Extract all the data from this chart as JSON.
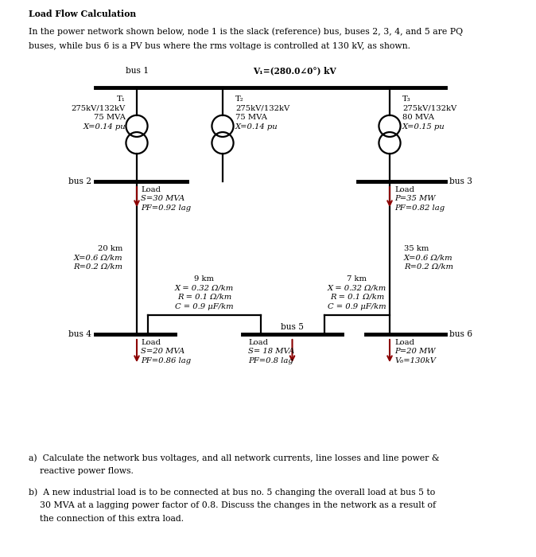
{
  "title": "Load Flow Calculation",
  "intro_line1": "In the power network shown below, node 1 is the slack (reference) bus, buses 2, 3, 4, and 5 are PQ",
  "intro_line2": "buses, while bus 6 is a PV bus where the rms voltage is controlled at 130 kV, as shown.",
  "bus1_label": "bus 1",
  "bus2_label": "bus 2",
  "bus3_label": "bus 3",
  "bus4_label": "bus 4",
  "bus5_label": "bus 5",
  "bus6_label": "bus 6",
  "v1_label": "V₁=(280.0∠0°) kV",
  "T1_line0": "T₁",
  "T1_line1": "275kV/132kV",
  "T1_line2": "75 MVA",
  "T1_line3": "X=0.14 pu",
  "T2_line0": "T₂",
  "T2_line1": "275kV/132kV",
  "T2_line2": "75 MVA",
  "T2_line3": "X=0.14 pu",
  "T3_line0": "T₃",
  "T3_line1": "275kV/132kV",
  "T3_line2": "80 MVA",
  "T3_line3": "X=0.15 pu",
  "load2_line0": "Load",
  "load2_line1": "S=30 MVA",
  "load2_line2": "PF=0.92 lag",
  "load3_line0": "Load",
  "load3_line1": "P=35 MW",
  "load3_line2": "PF=0.82 lag",
  "line24_line0": "20 km",
  "line24_line1": "X=0.6 Ω/km",
  "line24_line2": "R=0.2 Ω/km",
  "line36_line0": "35 km",
  "line36_line1": "X=0.6 Ω/km",
  "line36_line2": "R=0.2 Ω/km",
  "line45a_line0": "9 km",
  "line45a_line1": "X = 0.32 Ω/km",
  "line45a_line2": "R = 0.1 Ω/km",
  "line45a_line3": "C = 0.9 μF/km",
  "line56_line0": "7 km",
  "line56_line1": "X = 0.32 Ω/km",
  "line56_line2": "R = 0.1 Ω/km",
  "line56_line3": "C = 0.9 μF/km",
  "load4_line0": "Load",
  "load4_line1": "S=20 MVA",
  "load4_line2": "PF=0.86 lag",
  "load5_line0": "Load",
  "load5_line1": "S= 18 MVA",
  "load5_line2": "PF=0.8 lag",
  "load6_line0": "Load",
  "load6_line1": "P=20 MW",
  "load6_line2": "V₆=130kV",
  "qa1": "a)  Calculate the network bus voltages, and all network currents, line losses and line power &",
  "qa2": "    reactive power flows.",
  "qb1": "b)  A new industrial load is to be connected at bus no. 5 changing the overall load at bus 5 to",
  "qb2": "    30 MVA at a lagging power factor of 0.8. Discuss the changes in the network as a result of",
  "qb3": "    the connection of this extra load.",
  "bg": "#ffffff",
  "lc": "#000000",
  "ac": "#8B0000"
}
